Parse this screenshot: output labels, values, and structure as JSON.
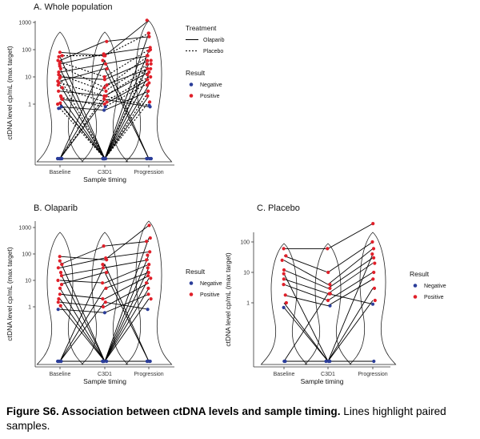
{
  "caption": {
    "bold": "Figure S6. Association between ctDNA levels and sample timing.",
    "rest": " Lines highlight paired samples."
  },
  "colors": {
    "negative": "#2b3d99",
    "positive": "#e0202a",
    "line": "#000000",
    "axis": "#333333"
  },
  "chart_data": [
    {
      "type": "scatter",
      "panel_title": "A. Whole population",
      "xlabel": "Sample timing",
      "ylabel": "ctDNA level cp/mL (max target)",
      "categories": [
        "Baseline",
        "C3D1",
        "Progression"
      ],
      "yscale": "log10",
      "yticks": [
        "1",
        "10",
        "100",
        "1000"
      ],
      "grid": false,
      "legend_position": "right",
      "legend": {
        "treatment_title": "Treatment",
        "treatment_items": [
          "Olaparib",
          "Placebo"
        ],
        "result_title": "Result",
        "result_items": [
          "Negative",
          "Positive"
        ]
      },
      "series": [
        {
          "name": "Olaparib",
          "line": "solid",
          "pairs": [
            [
              80,
              60,
              1200
            ],
            [
              55,
              0,
              400
            ],
            [
              40,
              200,
              300
            ],
            [
              30,
              70,
              120
            ],
            [
              20,
              0,
              90
            ],
            [
              15,
              30,
              60
            ],
            [
              10,
              8,
              40
            ],
            [
              7,
              20,
              0
            ],
            [
              5,
              0,
              30
            ],
            [
              3,
              2,
              15
            ],
            [
              2,
              0,
              0
            ],
            [
              1.5,
              1,
              8
            ],
            [
              1.1,
              0,
              5
            ],
            [
              0.8,
              0.6,
              3
            ],
            [
              0,
              5,
              20
            ],
            [
              0,
              0,
              2
            ],
            [
              0,
              1.5,
              0.8
            ],
            [
              0,
              0,
              12
            ],
            [
              0,
              40,
              0
            ],
            [
              0,
              0,
              0
            ]
          ]
        },
        {
          "name": "Placebo",
          "line": "dotted",
          "pairs": [
            [
              60,
              60,
              400
            ],
            [
              35,
              10,
              100
            ],
            [
              25,
              4,
              60
            ],
            [
              12,
              3,
              30
            ],
            [
              6,
              2,
              20
            ],
            [
              4,
              1.2,
              10
            ],
            [
              1.8,
              0.8,
              6
            ],
            [
              1,
              0,
              3
            ],
            [
              0.7,
              0,
              1.2
            ],
            [
              0,
              0,
              40
            ],
            [
              0,
              2,
              0.9
            ],
            [
              9,
              0,
              0
            ]
          ]
        }
      ]
    },
    {
      "type": "scatter",
      "panel_title": "B. Olaparib",
      "xlabel": "Sample timing",
      "ylabel": "ctDNA level cp/mL (max target)",
      "categories": [
        "Baseline",
        "C3D1",
        "Progression"
      ],
      "yscale": "log10",
      "yticks": [
        "1",
        "10",
        "100",
        "1000"
      ],
      "grid": false,
      "legend_position": "right",
      "legend": {
        "result_title": "Result",
        "result_items": [
          "Negative",
          "Positive"
        ]
      },
      "series": [
        {
          "name": "Olaparib",
          "line": "solid",
          "pairs": [
            [
              80,
              60,
              1200
            ],
            [
              55,
              0,
              400
            ],
            [
              40,
              200,
              300
            ],
            [
              30,
              70,
              120
            ],
            [
              20,
              0,
              90
            ],
            [
              15,
              30,
              60
            ],
            [
              10,
              8,
              40
            ],
            [
              7,
              20,
              0
            ],
            [
              5,
              0,
              30
            ],
            [
              3,
              2,
              15
            ],
            [
              2,
              0,
              0
            ],
            [
              1.5,
              1,
              8
            ],
            [
              1.1,
              0,
              5
            ],
            [
              0.8,
              0.6,
              3
            ],
            [
              0,
              5,
              20
            ],
            [
              0,
              0,
              2
            ],
            [
              0,
              1.5,
              0.8
            ],
            [
              0,
              0,
              12
            ],
            [
              0,
              40,
              0
            ],
            [
              0,
              0,
              0
            ]
          ]
        }
      ]
    },
    {
      "type": "scatter",
      "panel_title": "C. Placebo",
      "xlabel": "Sample timing",
      "ylabel": "ctDNA level cp/mL (max target)",
      "categories": [
        "Baseline",
        "C3D1",
        "Progression"
      ],
      "yscale": "log10",
      "yticks": [
        "1",
        "10",
        "100"
      ],
      "grid": false,
      "legend_position": "right",
      "legend": {
        "result_title": "Result",
        "result_items": [
          "Negative",
          "Positive"
        ]
      },
      "series": [
        {
          "name": "Placebo",
          "line": "solid",
          "pairs": [
            [
              60,
              60,
              400
            ],
            [
              35,
              10,
              100
            ],
            [
              25,
              4,
              60
            ],
            [
              12,
              3,
              30
            ],
            [
              6,
              2,
              20
            ],
            [
              4,
              1.2,
              10
            ],
            [
              1.8,
              0.8,
              6
            ],
            [
              1,
              0,
              3
            ],
            [
              0.7,
              0,
              1.2
            ],
            [
              0,
              0,
              40
            ],
            [
              0,
              2,
              0.9
            ],
            [
              9,
              0,
              0
            ]
          ]
        }
      ]
    }
  ]
}
